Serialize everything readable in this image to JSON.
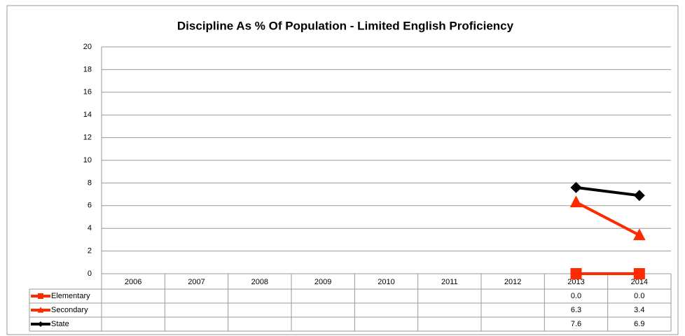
{
  "chart_data": {
    "type": "line",
    "title": "Discipline As % Of Population - Limited English Proficiency",
    "categories": [
      "2006",
      "2007",
      "2008",
      "2009",
      "2010",
      "2011",
      "2012",
      "2013",
      "2014"
    ],
    "series": [
      {
        "name": "Elementary",
        "color": "#ff2a00",
        "marker": "square",
        "values": [
          null,
          null,
          null,
          null,
          null,
          null,
          null,
          0,
          0
        ],
        "value_labels": [
          null,
          null,
          null,
          null,
          null,
          null,
          null,
          "0.0",
          "0.0"
        ]
      },
      {
        "name": "Secondary",
        "color": "#ff2a00",
        "marker": "triangle",
        "values": [
          null,
          null,
          null,
          null,
          null,
          null,
          null,
          6.3,
          3.4
        ],
        "value_labels": [
          null,
          null,
          null,
          null,
          null,
          null,
          null,
          "6.3",
          "3.4"
        ]
      },
      {
        "name": "State",
        "color": "#000000",
        "marker": "diamond",
        "values": [
          null,
          null,
          null,
          null,
          null,
          null,
          null,
          7.6,
          6.9
        ],
        "value_labels": [
          null,
          null,
          null,
          null,
          null,
          null,
          null,
          "7.6",
          "6.9"
        ]
      }
    ],
    "ylim": [
      0,
      20
    ],
    "yticks": [
      0,
      2,
      4,
      6,
      8,
      10,
      12,
      14,
      16,
      18,
      20
    ],
    "grid": true
  }
}
